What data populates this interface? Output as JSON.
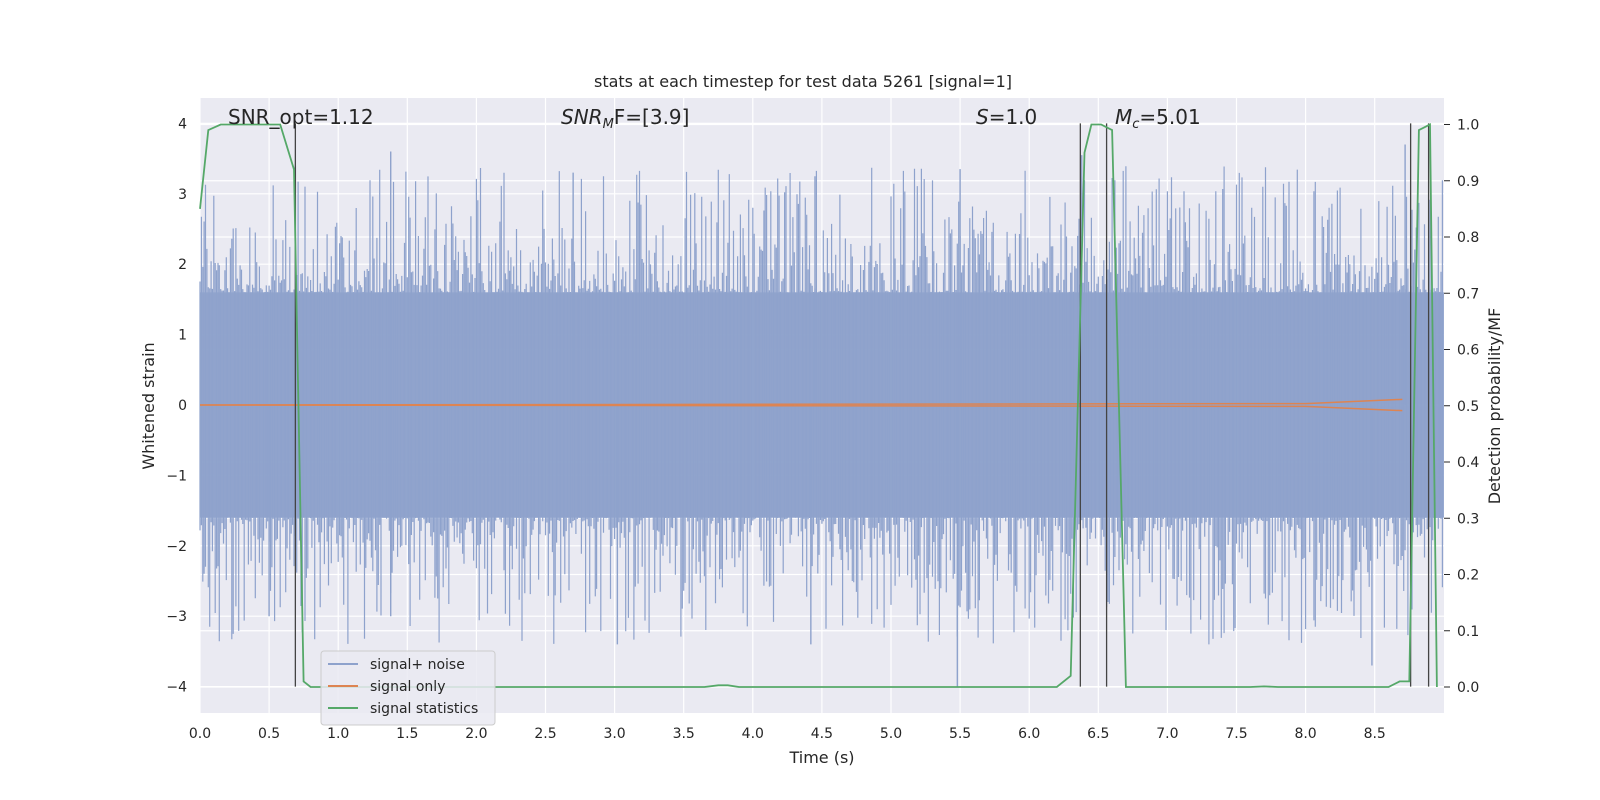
{
  "chart_data": {
    "type": "line",
    "title": "stats at each timestep for test data 5261 [signal=1]",
    "xlabel": "Time (s)",
    "ylabel_left": "Whitened strain",
    "ylabel_right": "Detection probability/MF",
    "xlim": [
      0.0,
      9.0
    ],
    "ylim_left": [
      -4.4,
      4.4
    ],
    "ylim_right": [
      -0.05,
      1.05
    ],
    "x_ticks": [
      "0.0",
      "0.5",
      "1.0",
      "1.5",
      "2.0",
      "2.5",
      "3.0",
      "3.5",
      "4.0",
      "4.5",
      "5.0",
      "5.5",
      "6.0",
      "6.5",
      "7.0",
      "7.5",
      "8.0",
      "8.5"
    ],
    "y_ticks_left": [
      "−4",
      "−3",
      "−2",
      "−1",
      "0",
      "1",
      "2",
      "3",
      "4"
    ],
    "y_ticks_right": [
      "0.0",
      "0.1",
      "0.2",
      "0.3",
      "0.4",
      "0.5",
      "0.6",
      "0.7",
      "0.8",
      "0.9",
      "1.0"
    ],
    "grid": true,
    "legend_position": "lower-left",
    "annotations": {
      "snr_opt": "SNR_opt=1.12",
      "snr_mf_main": "SNR",
      "snr_mf_sub": "M",
      "snr_mf_rest": "F=[3.9]",
      "s_var": "S",
      "s_rest": "=1.0",
      "mc_var": "M",
      "mc_sub": "c",
      "mc_rest": "=5.01"
    },
    "series": [
      {
        "name": "signal+ noise",
        "color": "#8ea2cc",
        "description_values": "noise band, roughly ±1.6 envelope with spikes to ±3.6",
        "samples": 900,
        "envelope": 1.6
      },
      {
        "name": "signal only",
        "color": "#dd8452",
        "x": [
          0.0,
          8.0,
          8.7
        ],
        "y": [
          0.0,
          0.02,
          0.08
        ]
      },
      {
        "name": "signal statistics",
        "color": "#55a868",
        "axis": "right",
        "x": [
          0.0,
          0.06,
          0.15,
          0.4,
          0.58,
          0.68,
          0.75,
          0.8,
          0.9,
          3.65,
          3.75,
          3.82,
          3.9,
          6.2,
          6.3,
          6.4,
          6.45,
          6.52,
          6.6,
          6.7,
          6.8,
          7.6,
          7.7,
          7.8,
          8.6,
          8.68,
          8.75,
          8.82,
          8.9,
          8.95
        ],
        "y": [
          0.85,
          0.99,
          1.0,
          1.0,
          1.0,
          0.92,
          0.01,
          0.0,
          0.0,
          0.0,
          0.003,
          0.003,
          0.0,
          0.0,
          0.02,
          0.95,
          1.0,
          1.0,
          0.99,
          0.0,
          0.0,
          0.0,
          0.001,
          0.0,
          0.0,
          0.01,
          0.01,
          0.99,
          1.0,
          0.0
        ]
      }
    ],
    "vertical_lines": {
      "color": "#444444",
      "x": [
        0.69,
        6.37,
        6.56,
        8.76,
        8.89
      ]
    },
    "noise_spikes": [
      {
        "x": 0.69,
        "y": 3.4
      },
      {
        "x": 1.38,
        "y": 3.6
      },
      {
        "x": 2.7,
        "y": 3.3
      },
      {
        "x": 4.45,
        "y": 3.25
      },
      {
        "x": 5.5,
        "y": 3.35
      },
      {
        "x": 6.38,
        "y": 3.55
      },
      {
        "x": 8.72,
        "y": 3.7
      },
      {
        "x": 3.02,
        "y": -3.4
      },
      {
        "x": 4.42,
        "y": -3.4
      },
      {
        "x": 5.48,
        "y": -4.0
      },
      {
        "x": 8.48,
        "y": -3.7
      },
      {
        "x": 1.38,
        "y": -3.0
      },
      {
        "x": 0.5,
        "y": -3.0
      }
    ]
  }
}
